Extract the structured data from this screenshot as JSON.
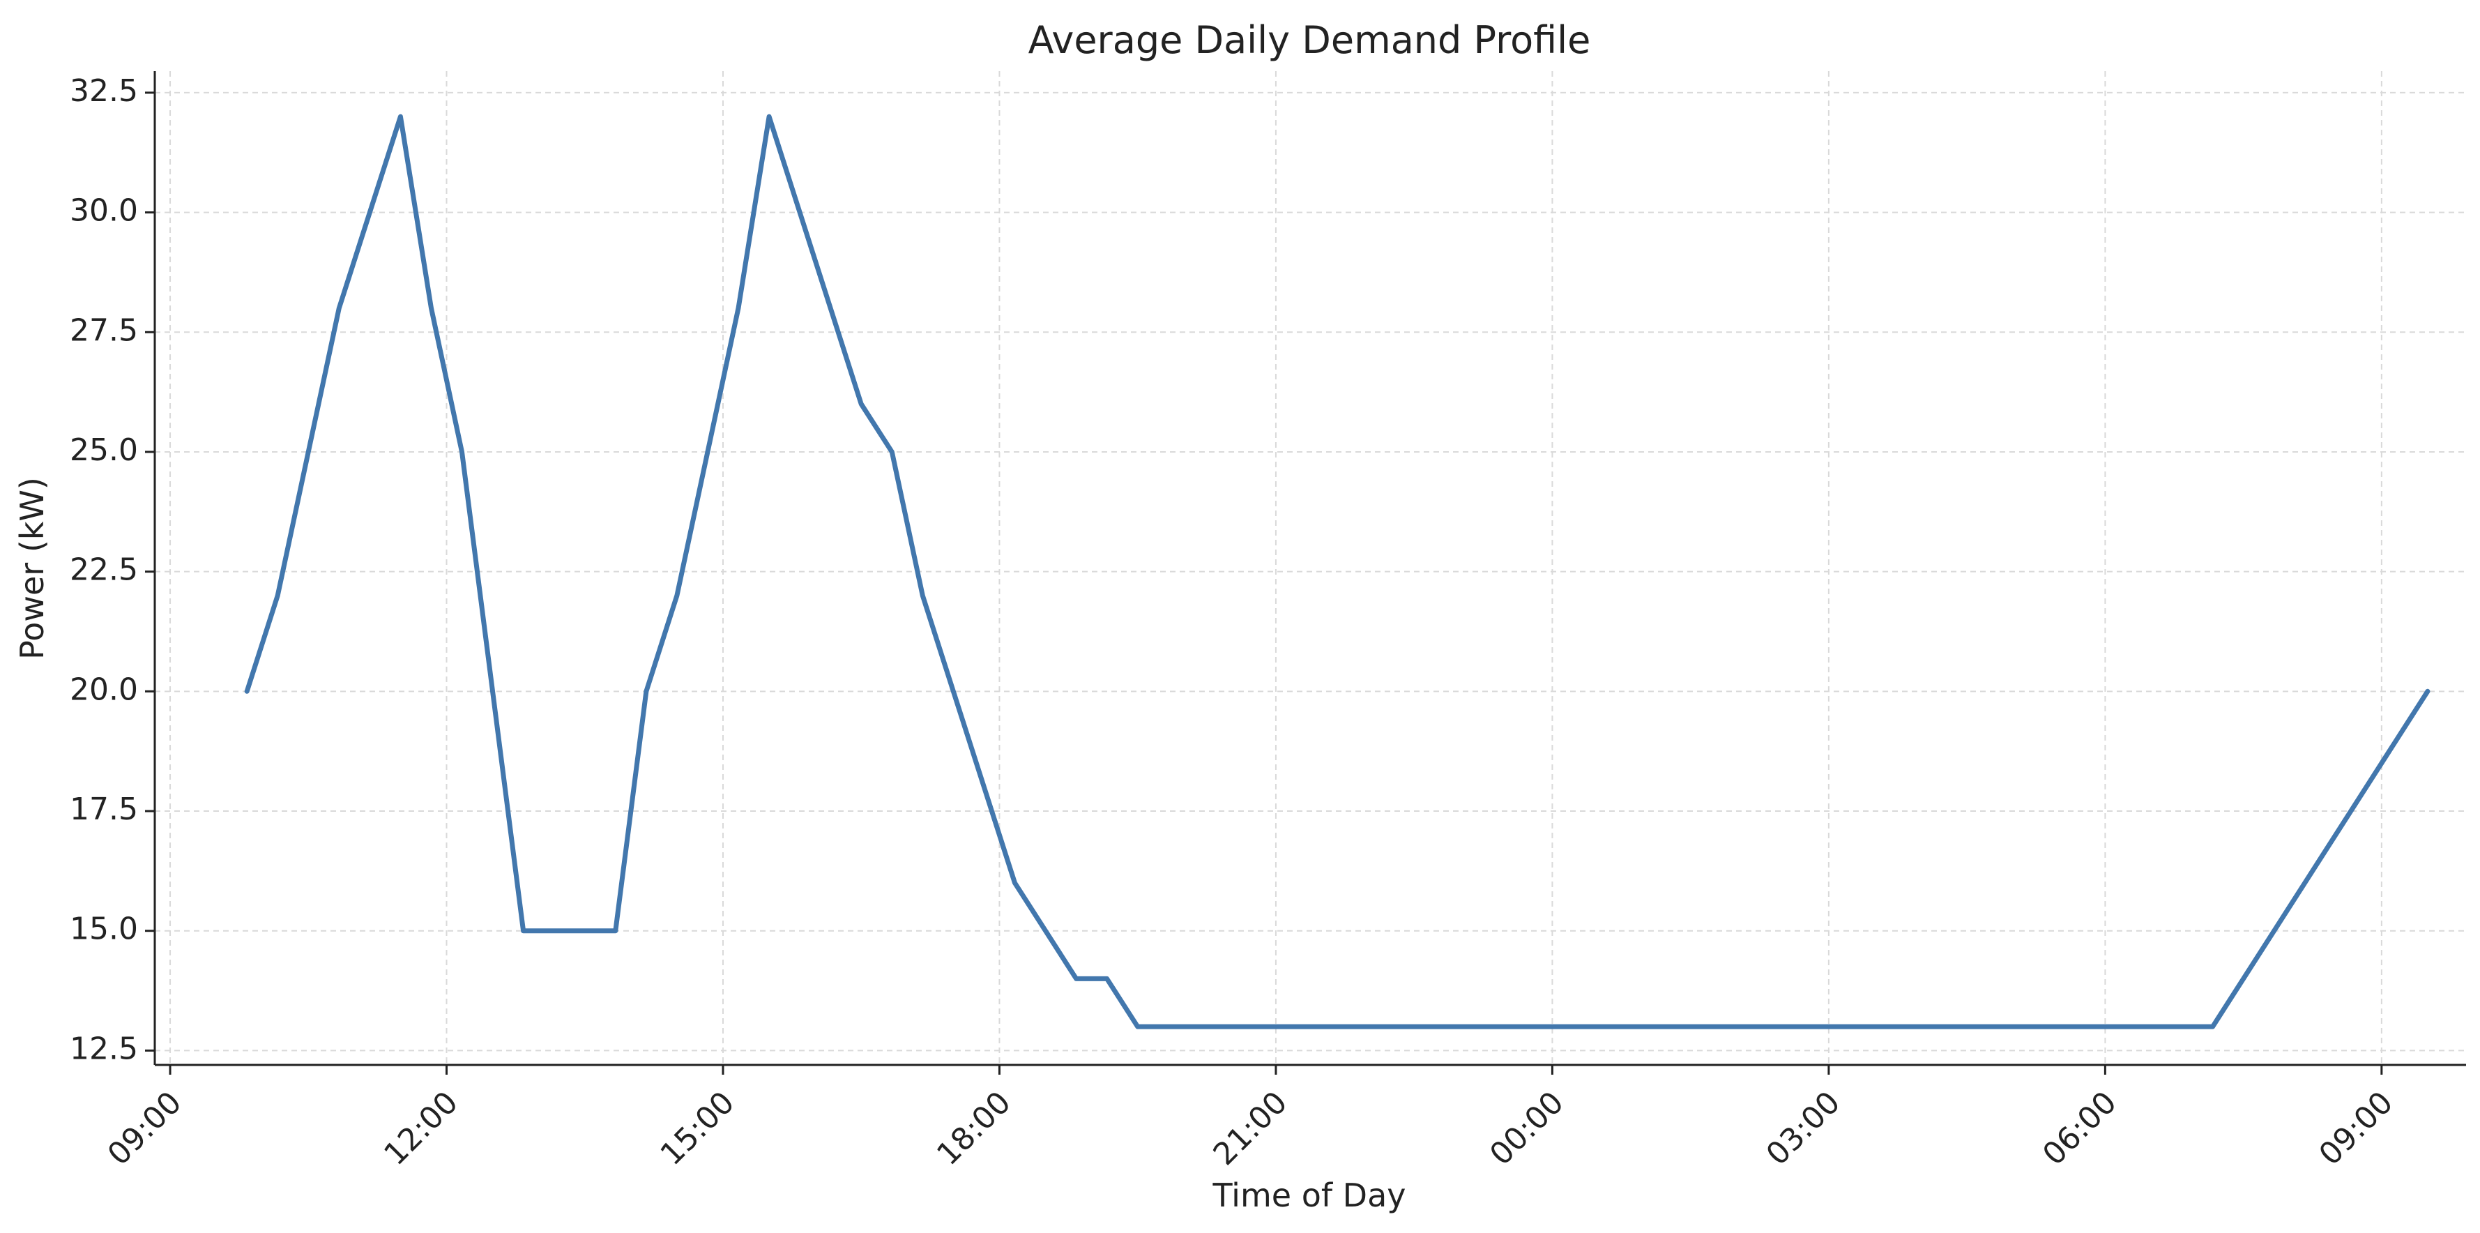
{
  "chart_data": {
    "type": "line",
    "title": "Average Daily Demand Profile",
    "xlabel": "Time of Day",
    "ylabel": "Power (kW)",
    "ylim": [
      12.2,
      32.95
    ],
    "xlim": [
      "08:50",
      "09:55 (+1 day)"
    ],
    "grid": true,
    "x_ticks": [
      "09:00",
      "12:00",
      "15:00",
      "18:00",
      "21:00",
      "00:00",
      "03:00",
      "06:00",
      "09:00"
    ],
    "y_ticks": [
      "12.5",
      "15.0",
      "17.5",
      "20.0",
      "22.5",
      "25.0",
      "27.5",
      "30.0",
      "32.5"
    ],
    "series": [
      {
        "color": "#4277ad",
        "x": [
          "09:50",
          "10:10",
          "10:50",
          "11:30",
          "11:50",
          "12:10",
          "12:50",
          "13:50",
          "14:10",
          "14:30",
          "15:10",
          "15:30",
          "16:30",
          "16:50",
          "17:10",
          "18:10",
          "18:50",
          "19:10",
          "19:30",
          "07:10",
          "09:30"
        ],
        "values": [
          20,
          22,
          28,
          32,
          28,
          25,
          15,
          15,
          20,
          22,
          28,
          32,
          26,
          25,
          22,
          16,
          14,
          14,
          13,
          13,
          20
        ]
      }
    ]
  }
}
